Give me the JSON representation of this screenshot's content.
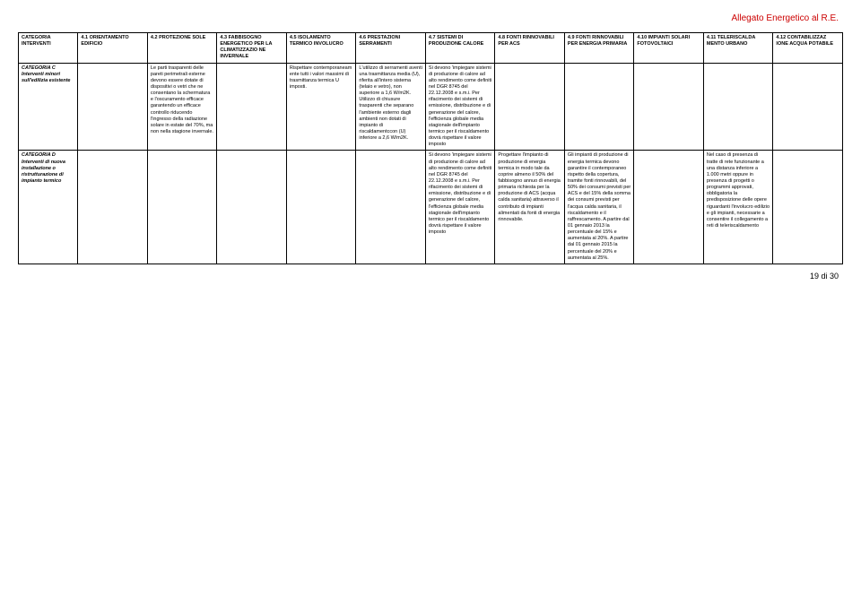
{
  "header": "Allegato Energetico al R.E.",
  "footer": "19 di 30",
  "columns": [
    "CATEGORIA INTERVENTI",
    "4.1 ORIENTAMENTO EDIFICIO",
    "4.2 PROTEZIONE SOLE",
    "4.3 FABBISOGNO ENERGETICO PER LA CLIMATIZZAZIO NE INVERNALE",
    "4.5 ISOLAMENTO TERMICO INVOLUCRO",
    "4.6 PRESTAZIONI SERRAMENTI",
    "4.7 SISTEMI DI PRODUZIONE CALORE",
    "4.8 FONTI RINNOVABILI PER ACS",
    "4.9 FONTI RINNOVABILI PER ENERGIA PRIMARIA",
    "4.10 IMPIANTI SOLARI FOTOVOLTAICI",
    "4.11 TELERISCALDA MENTO URBANO",
    "4.12 CONTABILIZZAZ IONE ACQUA POTABILE"
  ],
  "rows": [
    {
      "label": "CATEGORIA C Interventi minori sull'edilizia esistente",
      "c1": "",
      "c2": "Le parti trasparenti delle pareti perimetrali esterne devono essere dotate di dispositivi o vetri che ne consentano la schermatura e l'oscuramento efficace garantendo un efficace controllo riducendo l'ingresso della radiazione solare in estate del 70%, ma non nella stagione invernale.",
      "c3": "",
      "c4": "Rispettare contemporaneam ente tutti i valori massimi di trasmittanza termica U imposti.",
      "c5": "L'utilizzo di serramenti aventi una trasmittanza media (U), riferita all'intero sistema (telaio e vetro), non superiore a 1,6 W/m2K. Utilizzo di chiusure trasparenti che separano l'ambiente esterno dagli ambienti non dotati di impianto di riscaldamentccon (U) inferiore a 2,6 W/m2K.",
      "c6": "Si devono 'impiegare sistemi di produzione di calore ad alto rendimento come definiti nel DGR 8745 del 22.12.2008 e s.m.i. Per rifacimento dei sistemi di emissione, distribuzione e di generazione del calore, l'efficienza globale media stagionale dell'impianto termico per il riscaldamento dovrà rispettare il valore imposto",
      "c7": "",
      "c8": "",
      "c9": "",
      "c10": "",
      "c11": ""
    },
    {
      "label": "CATEGORIA D Interventi di nuova installazione o ristrutturazione di impianto termico",
      "c1": "",
      "c2": "",
      "c3": "",
      "c4": "",
      "c5": "",
      "c6": "Si devono 'impiegare sistemi di produzione di calore ad alto rendimento come definiti nel DGR 8745 del 22.12.2008 e s.m.i. Per rifacimento dei sistemi di emissione, distribuzione e di generazione del calore, l'efficienza globale media stagionale dell'impianto termico per il riscaldamento dovrà rispettare il valore imposto",
      "c7": "Progettare l'impianto di produzione di energia termica in modo tale da coprire almeno il 50% del fabbisogno annuo di energia primaria richiesta per la produzione di ACS (acqua calda sanitaria) attraverso il contributo di impianti alimentati da fonti di energia rinnovabile.",
      "c8": "Gli impianti di produzione di energia termica devono garantire il contemporaneo rispetto della copertura, tramite fonti rinnovabili, del 50% dei consumi previsti per ACS e del 15% della somma dei consumi previsti per l'acqua calda sanitaria, il riscaldamento e il raffrescamento. A partire dal 01 gennaio 2013 la percentuale del 15% e aumentata al 20%. A partire dal 01 gennaio 2015 la percentuale del 20% e aumentata al 25%.",
      "c9": "",
      "c10": "Nel caso di presenza di tratte di rete funzionante a una distanza inferiore a 1.000 metri oppure in presenza di progetti o programmi approvati, obbligatoria la predisposizione delle opere riguardanti l'involucro edilizio e gli impianti, necessarie a consentire il collegamento a reti di teleriscaldamento",
      "c11": ""
    }
  ]
}
